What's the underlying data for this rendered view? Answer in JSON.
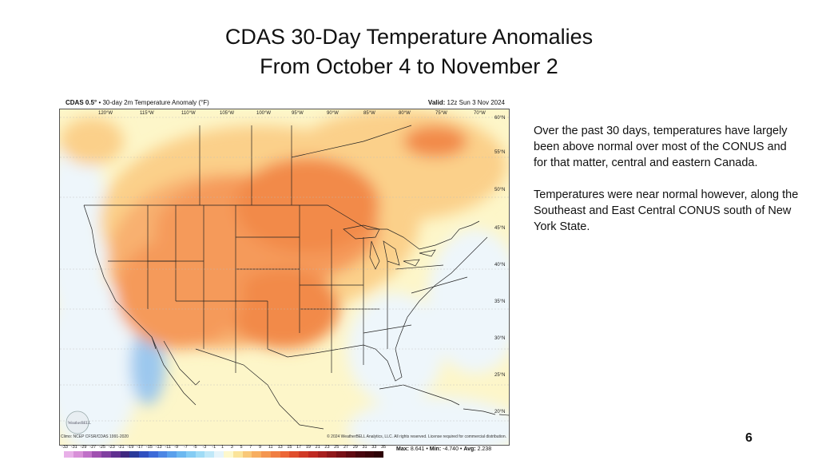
{
  "slide": {
    "title_line1": "CDAS 30-Day Temperature Anomalies",
    "title_line2": "From October 4 to November 2",
    "page_number": "6"
  },
  "map": {
    "header_product": "CDAS 0.5°",
    "header_desc": "• 30-day 2m Temperature Anomaly (°F)",
    "valid_label": "Valid:",
    "valid_value": "12z Sun 3 Nov 2024",
    "climo": "Climo: NCEP CFSR/CDAS 1991-2020",
    "copyright": "© 2024 WeatherBELL Analytics, LLC. All rights reserved. License required for commercial distribution.",
    "logo_text": "WeatherBELL",
    "lon_labels": [
      "120°W",
      "115°W",
      "110°W",
      "105°W",
      "100°W",
      "95°W",
      "90°W",
      "85°W",
      "80°W",
      "75°W",
      "70°W"
    ],
    "lat_labels": [
      "60°N",
      "55°N",
      "50°N",
      "45°N",
      "40°N",
      "35°N",
      "30°N",
      "25°N",
      "20°N"
    ],
    "scale_values": [
      "-33",
      "-31",
      "-29",
      "-27",
      "-25",
      "-23",
      "-21",
      "-19",
      "-17",
      "-15",
      "-13",
      "-11",
      "-9",
      "-7",
      "-5",
      "-3",
      "-1",
      "1",
      "3",
      "5",
      "7",
      "9",
      "11",
      "13",
      "15",
      "17",
      "19",
      "21",
      "23",
      "25",
      "27",
      "29",
      "31",
      "33",
      "35"
    ],
    "scale_colors": [
      "#e8b0e8",
      "#d890d8",
      "#c070c8",
      "#a050b0",
      "#8040a0",
      "#603090",
      "#402880",
      "#2a3a9a",
      "#3050c0",
      "#3c6ad8",
      "#4c86e4",
      "#5aa0ec",
      "#6cb8f0",
      "#84ccf4",
      "#a0dcf6",
      "#c0e8f8",
      "#e6f4fa",
      "#fdf8cc",
      "#fbe49a",
      "#f9c878",
      "#f7ae60",
      "#f49650",
      "#f07e42",
      "#ec6636",
      "#e04e2c",
      "#d03a26",
      "#c02a22",
      "#a8201e",
      "#90181a",
      "#781016",
      "#600a12",
      "#48060e",
      "#3a040a",
      "#2c0206"
    ],
    "stats_max_label": "Max:",
    "stats_max": "8.641",
    "stats_min_label": "Min:",
    "stats_min": "-4.740",
    "stats_avg_label": "Avg:",
    "stats_avg": "2.238"
  },
  "commentary": {
    "para1": "Over the past 30 days, temperatures have largely been above normal over most of the CONUS and for that matter, central and eastern Canada.",
    "para2": "Temperatures were near normal however, along the Southeast  and East Central CONUS south of New York State."
  }
}
